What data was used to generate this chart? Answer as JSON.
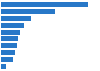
{
  "values": [
    810,
    500,
    280,
    210,
    175,
    155,
    145,
    130,
    110,
    45
  ],
  "bar_color": "#2878c8",
  "background_color": "#ffffff",
  "grid_color": "#d9d9d9",
  "xlim": [
    0,
    900
  ],
  "bar_height": 0.72,
  "figsize": [
    1.0,
    0.71
  ],
  "dpi": 100
}
